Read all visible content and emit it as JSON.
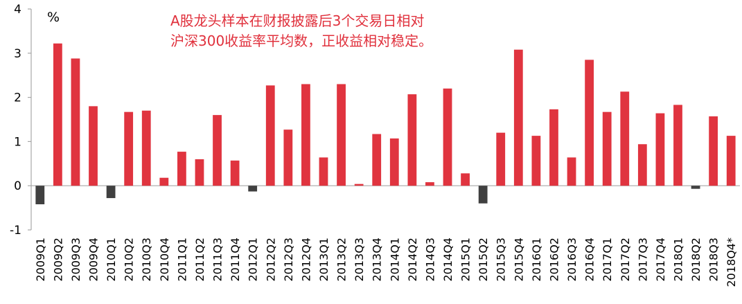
{
  "chart_data": {
    "type": "bar",
    "title": "",
    "ylabel": "%",
    "xlabel": "",
    "ylim": [
      -1,
      4
    ],
    "yticks": [
      -1,
      0,
      1,
      2,
      3,
      4
    ],
    "grid": false,
    "colors": {
      "positive": "#e0343f",
      "negative": "#404040"
    },
    "annotation": [
      "A股龙头样本在财报披露后3个交易日相对",
      "沪深300收益率平均数，正收益相对稳定。"
    ],
    "categories": [
      "2009Q1",
      "2009Q2",
      "2009Q3",
      "2009Q4",
      "2010Q1",
      "2010Q2",
      "2010Q3",
      "2010Q4",
      "2011Q1",
      "2011Q2",
      "2011Q3",
      "2011Q4",
      "2012Q1",
      "2012Q2",
      "2012Q3",
      "2012Q4",
      "2013Q1",
      "2013Q2",
      "2013Q3",
      "2013Q4",
      "2014Q1",
      "2014Q2",
      "2014Q3",
      "2014Q4",
      "2015Q1",
      "2015Q2",
      "2015Q3",
      "2015Q4",
      "2016Q1",
      "2016Q2",
      "2016Q3",
      "2016Q4",
      "2017Q1",
      "2017Q2",
      "2017Q3",
      "2017Q4",
      "2018Q1",
      "2018Q2",
      "2018Q3",
      "2018Q4*"
    ],
    "values": [
      -0.42,
      3.22,
      2.88,
      1.8,
      -0.28,
      1.67,
      1.7,
      0.18,
      0.77,
      0.6,
      1.6,
      0.57,
      -0.13,
      2.27,
      1.27,
      2.3,
      0.64,
      2.3,
      0.04,
      1.17,
      1.07,
      2.07,
      0.08,
      2.2,
      0.28,
      -0.4,
      1.2,
      3.08,
      1.13,
      1.73,
      0.64,
      2.85,
      1.67,
      2.13,
      0.94,
      1.64,
      1.83,
      -0.07,
      1.57,
      1.13
    ]
  }
}
